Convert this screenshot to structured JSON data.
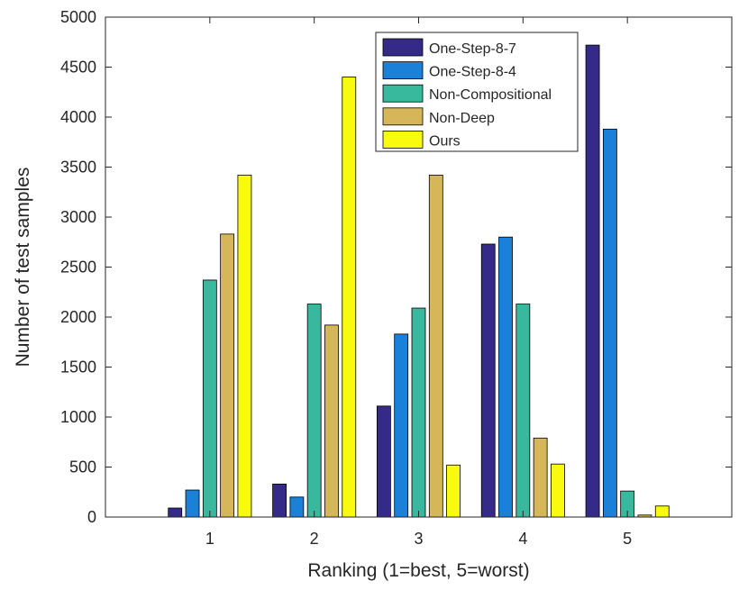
{
  "chart_data": {
    "type": "bar",
    "title": "",
    "xlabel": "Ranking (1=best, 5=worst)",
    "ylabel": "Number of test samples",
    "categories": [
      "1",
      "2",
      "3",
      "4",
      "5"
    ],
    "xlim": [
      0,
      6
    ],
    "ylim": [
      0,
      5000
    ],
    "yticks": [
      "0",
      "500",
      "1000",
      "1500",
      "2000",
      "2500",
      "3000",
      "3500",
      "4000",
      "4500",
      "5000"
    ],
    "grid": false,
    "legend_position": "top-right",
    "series": [
      {
        "name": "One-Step-8-7",
        "color": "#352a87",
        "values": [
          90,
          330,
          1110,
          2730,
          4720
        ]
      },
      {
        "name": "One-Step-8-4",
        "color": "#1a80d8",
        "values": [
          270,
          200,
          1830,
          2800,
          3880
        ]
      },
      {
        "name": "Non-Compositional",
        "color": "#38b99e",
        "values": [
          2370,
          2130,
          2090,
          2130,
          260
        ]
      },
      {
        "name": "Non-Deep",
        "color": "#d5b75a",
        "values": [
          2830,
          1920,
          3420,
          790,
          20
        ]
      },
      {
        "name": "Ours",
        "color": "#f9fb0e",
        "values": [
          3420,
          4400,
          520,
          530,
          110
        ]
      }
    ]
  }
}
